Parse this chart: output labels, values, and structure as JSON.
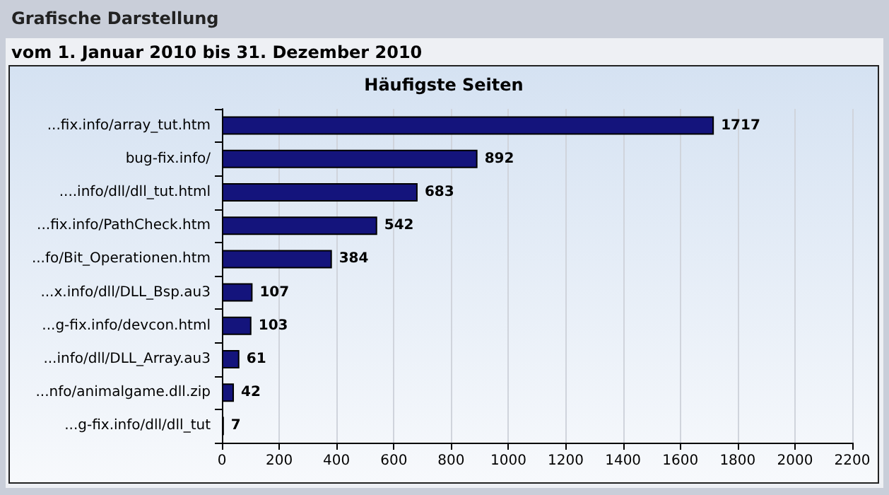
{
  "chart_data": {
    "type": "bar",
    "orientation": "horizontal",
    "title": "Häufigste Seiten",
    "annotations": [
      "Grafische Darstellung",
      "vom 1. Januar 2010  bis  31. Dezember 2010"
    ],
    "categories": [
      "...fix.info/array_tut.htm",
      "bug-fix.info/",
      "....info/dll/dll_tut.html",
      "...fix.info/PathCheck.htm",
      "...fo/Bit_Operationen.htm",
      "...x.info/dll/DLL_Bsp.au3",
      "...g-fix.info/devcon.html",
      "...info/dll/DLL_Array.au3",
      "...nfo/animalgame.dll.zip",
      "...g-fix.info/dll/dll_tut"
    ],
    "values": [
      1717,
      892,
      683,
      542,
      384,
      107,
      103,
      61,
      42,
      7
    ],
    "color": "#14147c",
    "xlim": [
      0,
      2200
    ],
    "xticks": [
      0,
      200,
      400,
      600,
      800,
      1000,
      1200,
      1400,
      1600,
      1800,
      2000,
      2200
    ],
    "grid": "x",
    "data_labels": true
  }
}
